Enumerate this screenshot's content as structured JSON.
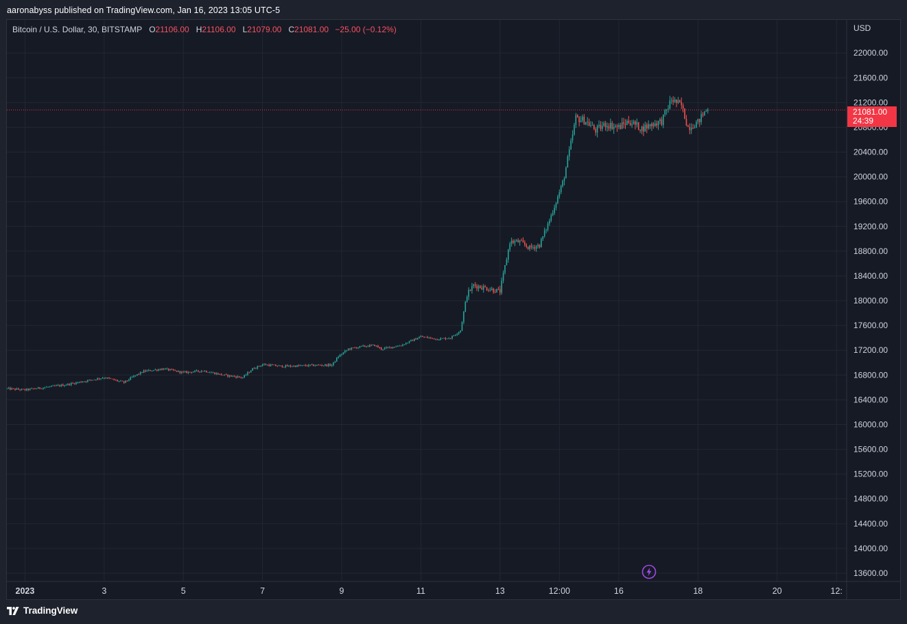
{
  "header": {
    "published_text": "aaronabyss published on TradingView.com, Jan 16, 2023 13:05 UTC-5"
  },
  "legend": {
    "symbol": "Bitcoin / U.S. Dollar, 30, BITSTAMP",
    "open_key": "O",
    "open": "21106.00",
    "high_key": "H",
    "high": "21106.00",
    "low_key": "L",
    "low": "21079.00",
    "close_key": "C",
    "close": "21081.00",
    "change": "−25.00 (−0.12%)"
  },
  "price_axis": {
    "currency": "USD",
    "ticks": [
      "22000.00",
      "21600.00",
      "21200.00",
      "20800.00",
      "20400.00",
      "20000.00",
      "19600.00",
      "19200.00",
      "18800.00",
      "18400.00",
      "18000.00",
      "17600.00",
      "17200.00",
      "16800.00",
      "16400.00",
      "16000.00",
      "15600.00",
      "15200.00",
      "14800.00",
      "14400.00",
      "14000.00",
      "13600.00"
    ]
  },
  "last_price": {
    "price": "21081.00",
    "countdown": "24:39"
  },
  "footer": {
    "brand": "TradingView"
  },
  "colors": {
    "up": "#26a69a",
    "down": "#ef5350",
    "background": "#161a25",
    "grid": "#232733",
    "price_line": "#f23645",
    "bolt": "#a04ae6"
  },
  "chart_data": {
    "type": "candlestick",
    "title": "Bitcoin / U.S. Dollar, 30, BITSTAMP",
    "ylabel": "USD",
    "ylim": [
      13467,
      22534
    ],
    "x_ticks": [
      {
        "label": "2023",
        "bold": true,
        "t": 0
      },
      {
        "label": "3",
        "t": 48
      },
      {
        "label": "5",
        "t": 96
      },
      {
        "label": "7",
        "t": 144
      },
      {
        "label": "9",
        "t": 192
      },
      {
        "label": "11",
        "t": 240
      },
      {
        "label": "13",
        "t": 288
      },
      {
        "label": "12:00",
        "t": 324
      },
      {
        "label": "16",
        "t": 360
      },
      {
        "label": "18",
        "t": 408
      },
      {
        "label": "20",
        "t": 456
      },
      {
        "label": "12:",
        "t": 492
      }
    ],
    "t_start": -11,
    "t_end": 455,
    "anchors": [
      [
        -11,
        16580
      ],
      [
        0,
        16560
      ],
      [
        12,
        16600
      ],
      [
        24,
        16640
      ],
      [
        36,
        16700
      ],
      [
        48,
        16760
      ],
      [
        60,
        16680
      ],
      [
        66,
        16780
      ],
      [
        72,
        16860
      ],
      [
        84,
        16900
      ],
      [
        96,
        16840
      ],
      [
        108,
        16870
      ],
      [
        120,
        16800
      ],
      [
        132,
        16760
      ],
      [
        138,
        16900
      ],
      [
        144,
        16970
      ],
      [
        156,
        16940
      ],
      [
        168,
        16950
      ],
      [
        180,
        16960
      ],
      [
        186,
        16960
      ],
      [
        190,
        17100
      ],
      [
        196,
        17220
      ],
      [
        204,
        17260
      ],
      [
        212,
        17280
      ],
      [
        216,
        17220
      ],
      [
        228,
        17280
      ],
      [
        240,
        17420
      ],
      [
        250,
        17380
      ],
      [
        258,
        17400
      ],
      [
        264,
        17520
      ],
      [
        268,
        18100
      ],
      [
        272,
        18250
      ],
      [
        280,
        18200
      ],
      [
        288,
        18150
      ],
      [
        294,
        18950
      ],
      [
        300,
        18950
      ],
      [
        306,
        18850
      ],
      [
        312,
        18900
      ],
      [
        318,
        19300
      ],
      [
        326,
        19900
      ],
      [
        330,
        20400
      ],
      [
        334,
        20950
      ],
      [
        340,
        20900
      ],
      [
        346,
        20750
      ],
      [
        352,
        20850
      ],
      [
        360,
        20800
      ],
      [
        366,
        20900
      ],
      [
        374,
        20780
      ],
      [
        380,
        20850
      ],
      [
        386,
        20900
      ],
      [
        392,
        21250
      ],
      [
        398,
        21150
      ],
      [
        402,
        20800
      ],
      [
        408,
        20880
      ],
      [
        412,
        21050
      ],
      [
        414,
        21081
      ]
    ]
  }
}
